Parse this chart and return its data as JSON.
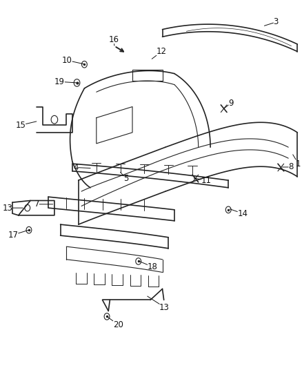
{
  "background_color": "#ffffff",
  "line_color": "#222222",
  "label_color": "#111111",
  "label_fontsize": 8.5
}
